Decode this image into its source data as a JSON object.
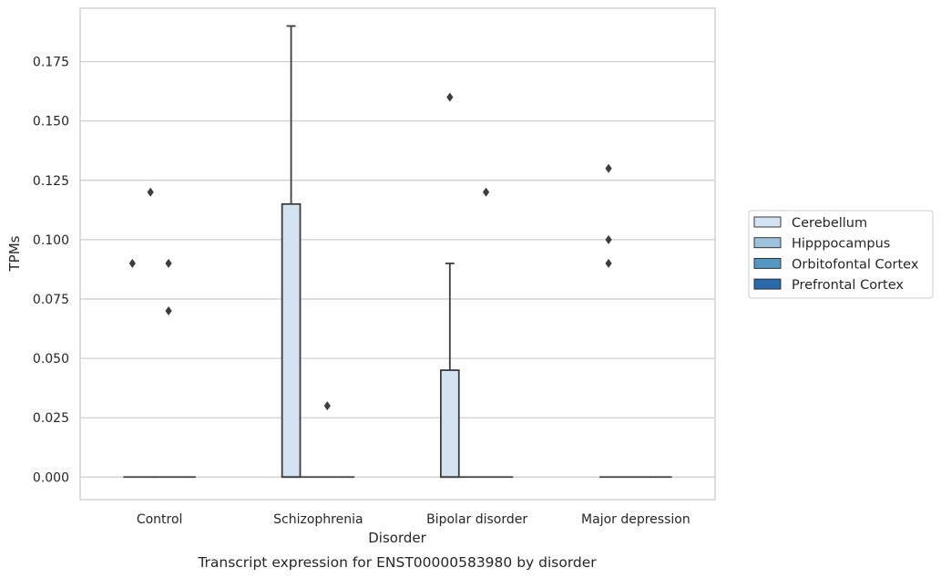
{
  "chart_data": {
    "type": "box",
    "title": "",
    "caption": "Transcript expression for ENST00000583980 by disorder",
    "xlabel": "Disorder",
    "ylabel": "TPMs",
    "categories": [
      "Control",
      "Schizophrenia",
      "Bipolar disorder",
      "Major depression"
    ],
    "ylim": [
      -0.0095,
      0.1975
    ],
    "yticks": [
      0.0,
      0.025,
      0.05,
      0.075,
      0.1,
      0.125,
      0.15,
      0.175
    ],
    "ytick_labels": [
      "0.000",
      "0.025",
      "0.050",
      "0.075",
      "0.100",
      "0.125",
      "0.150",
      "0.175"
    ],
    "grid": "horizontal",
    "legend_position": "right",
    "series": [
      {
        "name": "Cerebellum",
        "color": "#d4e3f2",
        "boxes": [
          {
            "q1": 0,
            "median": 0,
            "q3": 0,
            "whisker_low": 0,
            "whisker_high": 0,
            "outliers": [
              0.09
            ]
          },
          {
            "q1": 0,
            "median": 0,
            "q3": 0.115,
            "whisker_low": 0,
            "whisker_high": 0.19,
            "outliers": []
          },
          {
            "q1": 0,
            "median": 0,
            "q3": 0.045,
            "whisker_low": 0,
            "whisker_high": 0.09,
            "outliers": [
              0.16
            ]
          },
          {
            "q1": 0,
            "median": 0,
            "q3": 0,
            "whisker_low": 0,
            "whisker_high": 0,
            "outliers": [
              0.13,
              0.1,
              0.09
            ]
          }
        ]
      },
      {
        "name": "Hipppocampus",
        "color": "#9cc2dc",
        "boxes": [
          {
            "q1": 0,
            "median": 0,
            "q3": 0,
            "whisker_low": 0,
            "whisker_high": 0,
            "outliers": [
              0.12
            ]
          },
          {
            "q1": 0,
            "median": 0,
            "q3": 0,
            "whisker_low": 0,
            "whisker_high": 0,
            "outliers": []
          },
          {
            "q1": 0,
            "median": 0,
            "q3": 0,
            "whisker_low": 0,
            "whisker_high": 0,
            "outliers": []
          },
          {
            "q1": 0,
            "median": 0,
            "q3": 0,
            "whisker_low": 0,
            "whisker_high": 0,
            "outliers": []
          }
        ]
      },
      {
        "name": "Orbitofontal Cortex",
        "color": "#5696c3",
        "boxes": [
          {
            "q1": 0,
            "median": 0,
            "q3": 0,
            "whisker_low": 0,
            "whisker_high": 0,
            "outliers": [
              0.09,
              0.07
            ]
          },
          {
            "q1": 0,
            "median": 0,
            "q3": 0,
            "whisker_low": 0,
            "whisker_high": 0,
            "outliers": [
              0.03
            ]
          },
          {
            "q1": 0,
            "median": 0,
            "q3": 0,
            "whisker_low": 0,
            "whisker_high": 0,
            "outliers": [
              0.12
            ]
          },
          {
            "q1": 0,
            "median": 0,
            "q3": 0,
            "whisker_low": 0,
            "whisker_high": 0,
            "outliers": []
          }
        ]
      },
      {
        "name": "Prefrontal Cortex",
        "color": "#2a6aab",
        "boxes": [
          {
            "q1": 0,
            "median": 0,
            "q3": 0,
            "whisker_low": 0,
            "whisker_high": 0,
            "outliers": []
          },
          {
            "q1": 0,
            "median": 0,
            "q3": 0,
            "whisker_low": 0,
            "whisker_high": 0,
            "outliers": []
          },
          {
            "q1": 0,
            "median": 0,
            "q3": 0,
            "whisker_low": 0,
            "whisker_high": 0,
            "outliers": []
          },
          {
            "q1": 0,
            "median": 0,
            "q3": 0,
            "whisker_low": 0,
            "whisker_high": 0,
            "outliers": []
          }
        ]
      }
    ]
  }
}
